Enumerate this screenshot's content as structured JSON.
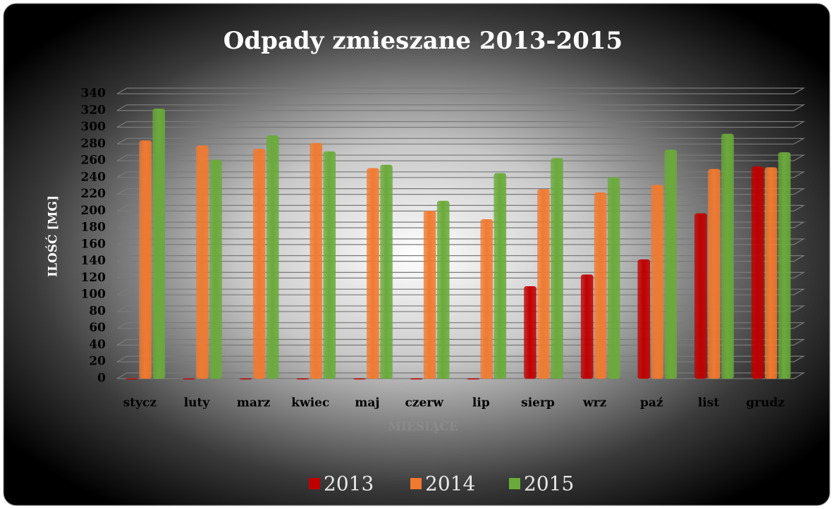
{
  "chart_data": {
    "type": "bar",
    "title": "Odpady zmieszane 2013-2015",
    "x_label": "MIESIĄCE",
    "y_label": "ILOŚĆ [MG]",
    "categories": [
      "stycz",
      "luty",
      "marz",
      "kwiec",
      "maj",
      "czerw",
      "lip",
      "sierp",
      "wrz",
      "paź",
      "list",
      "grudz"
    ],
    "series": [
      {
        "name": "2013",
        "color": "#c00000",
        "values": [
          0,
          0,
          0,
          0,
          0,
          0,
          0,
          110,
          124,
          142,
          197,
          253
        ]
      },
      {
        "name": "2014",
        "color": "#f07a30",
        "values": [
          284,
          278,
          274,
          281,
          251,
          200,
          190,
          226,
          222,
          231,
          250,
          252
        ]
      },
      {
        "name": "2015",
        "color": "#6aaa3a",
        "values": [
          322,
          261,
          290,
          271,
          255,
          212,
          245,
          263,
          240,
          273,
          292,
          270
        ]
      }
    ],
    "ylim": [
      0,
      340
    ],
    "yticks": [
      0,
      20,
      40,
      60,
      80,
      100,
      120,
      140,
      160,
      180,
      200,
      220,
      240,
      260,
      280,
      300,
      320,
      340
    ],
    "grid": true,
    "legend": "bottom"
  }
}
